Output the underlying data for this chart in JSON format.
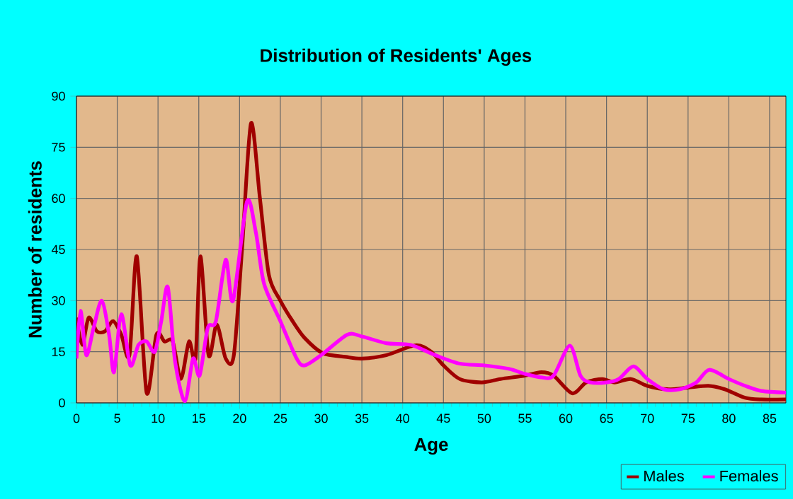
{
  "chart_data": {
    "type": "line",
    "title": "Distribution of Residents' Ages",
    "xlabel": "Age",
    "ylabel": "Number of residents",
    "xlim": [
      0,
      87
    ],
    "xticks": [
      0,
      5,
      10,
      15,
      20,
      25,
      30,
      35,
      40,
      45,
      50,
      55,
      60,
      65,
      70,
      75,
      80,
      85
    ],
    "ylim": [
      0,
      90
    ],
    "yticks": [
      0,
      15,
      30,
      45,
      60,
      75,
      90
    ],
    "grid": true,
    "legend": "bottom right",
    "marker": "none",
    "line_style": "solid",
    "series": [
      {
        "name": "Males",
        "color": "#a00000",
        "x": [
          0,
          0.7,
          1.5,
          2.5,
          3.5,
          4.5,
          5.5,
          6.5,
          7.4,
          8.6,
          9.8,
          10.8,
          11.8,
          12.8,
          13.8,
          14.6,
          15.2,
          16.2,
          17.2,
          18.3,
          19.3,
          20.3,
          21.4,
          22.5,
          23.6,
          25,
          26.5,
          28,
          30.2,
          33,
          35,
          38,
          41.6,
          43.5,
          45,
          47,
          49.7,
          52,
          55,
          57,
          58.5,
          60.8,
          62.5,
          64.5,
          66,
          68,
          70,
          72.5,
          75,
          77.5,
          79.5,
          82,
          84,
          87
        ],
        "values": [
          25,
          17,
          25,
          21,
          21,
          24,
          20,
          14,
          43,
          3,
          20,
          18,
          18,
          7,
          18,
          13,
          43,
          14,
          23,
          13,
          14,
          45,
          82,
          60,
          37.5,
          30,
          24,
          19,
          14.6,
          13.5,
          13,
          14,
          16.9,
          15,
          11,
          7,
          6,
          7,
          8,
          9,
          8,
          2.8,
          6,
          7,
          6,
          7,
          5,
          4,
          4.5,
          5,
          4,
          1.5,
          1,
          1
        ]
      },
      {
        "name": "Females",
        "color": "#ff00ff",
        "x": [
          0,
          0.5,
          1.2,
          2.1,
          3.1,
          4,
          4.6,
          5.5,
          6.6,
          7.6,
          8.6,
          9.6,
          10.4,
          11.2,
          12.1,
          13.3,
          14.3,
          15.1,
          16.1,
          17.1,
          18.3,
          19.2,
          20.9,
          22,
          23,
          25,
          27,
          28,
          30,
          33.2,
          35,
          38,
          41,
          44,
          47,
          50,
          53,
          55,
          57,
          58.5,
          60.5,
          61.8,
          63,
          65,
          66.5,
          68.3,
          70,
          72,
          74,
          76,
          77.6,
          80,
          82,
          84,
          87
        ],
        "values": [
          13,
          27,
          14,
          22,
          30,
          20,
          9,
          26,
          11,
          17,
          18,
          15,
          24,
          34,
          12,
          0.5,
          13,
          8,
          22,
          24,
          42,
          30,
          59,
          50,
          35,
          24,
          13,
          11,
          14,
          20,
          19.5,
          17.5,
          17,
          14,
          11.5,
          11,
          10,
          8.5,
          7.5,
          8,
          16.8,
          8,
          6,
          6,
          7,
          10.7,
          7,
          4,
          4,
          6,
          9.7,
          7,
          5,
          3.5,
          3
        ]
      }
    ]
  }
}
